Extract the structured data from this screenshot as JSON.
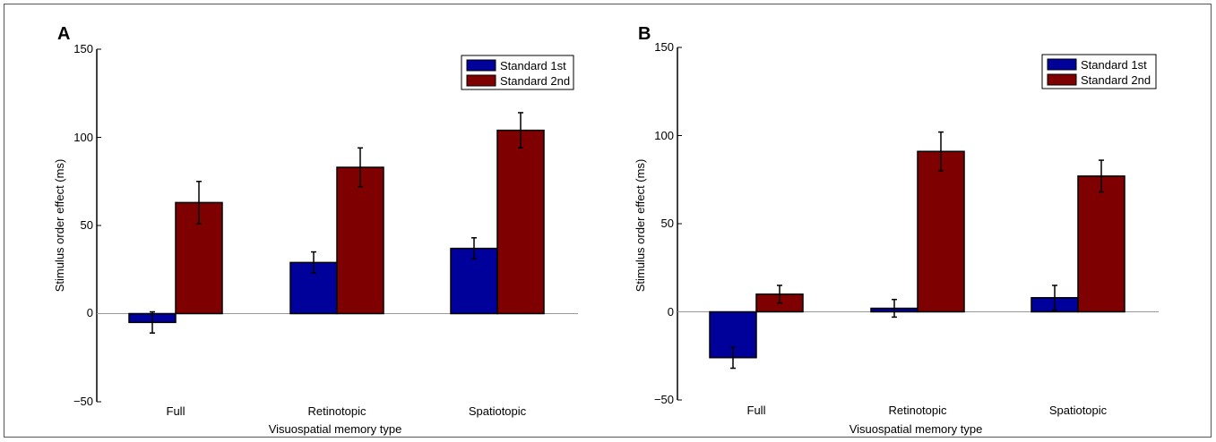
{
  "colors": {
    "standard_1st": "#00009b",
    "standard_2nd": "#7f0000",
    "frame": "#555555",
    "zero_line": "#999999"
  },
  "chart_data": [
    {
      "panel": "A",
      "type": "bar",
      "categories": [
        "Full",
        "Retinotopic",
        "Spatiotopic"
      ],
      "series": [
        {
          "name": "Standard 1st",
          "values": [
            -5,
            29,
            37
          ],
          "errors": [
            6,
            6,
            6
          ]
        },
        {
          "name": "Standard 2nd",
          "values": [
            63,
            83,
            104
          ],
          "errors": [
            12,
            11,
            10
          ]
        }
      ],
      "xlabel": "Visuospatial memory type",
      "ylabel": "Stimulus order effect (ms)",
      "ylim": [
        -50,
        150
      ],
      "yticks": [
        "150",
        "100",
        "50",
        "0",
        "−50"
      ],
      "legend": "top-right",
      "grid": false
    },
    {
      "panel": "B",
      "type": "bar",
      "categories": [
        "Full",
        "Retinotopic",
        "Spatiotopic"
      ],
      "series": [
        {
          "name": "Standard 1st",
          "values": [
            -26,
            2,
            8
          ],
          "errors": [
            6,
            5,
            7
          ]
        },
        {
          "name": "Standard 2nd",
          "values": [
            10,
            91,
            77
          ],
          "errors": [
            5,
            11,
            9
          ]
        }
      ],
      "xlabel": "Visuospatial memory type",
      "ylabel": "Stimulus order effect (ms)",
      "ylim": [
        -50,
        150
      ],
      "yticks": [
        "150",
        "100",
        "50",
        "0",
        "−50"
      ],
      "legend": "top-right",
      "grid": false
    }
  ]
}
